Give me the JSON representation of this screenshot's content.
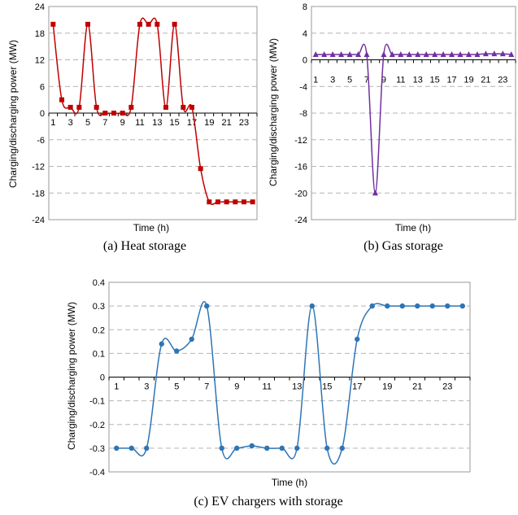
{
  "chart_data": [
    {
      "type": "line",
      "caption": "(a) Heat storage",
      "xlabel": "Time (h)",
      "ylabel": "Charging/discharging power (MW)",
      "ylim": [
        -24,
        24
      ],
      "yticks": [
        24,
        18,
        12,
        6,
        0,
        -6,
        -12,
        -18,
        -24
      ],
      "xtick_labels": [
        "1",
        "3",
        "5",
        "7",
        "9",
        "11",
        "13",
        "15",
        "17",
        "19",
        "21",
        "23"
      ],
      "x": [
        1,
        2,
        3,
        4,
        5,
        6,
        7,
        8,
        9,
        10,
        11,
        12,
        13,
        14,
        15,
        16,
        17,
        18,
        19,
        20,
        21,
        22,
        23,
        24
      ],
      "series": [
        {
          "color": "#c00000",
          "marker": "square",
          "values": [
            20,
            3,
            1.3,
            1.3,
            20,
            1.3,
            0,
            0,
            0,
            1.3,
            20,
            20,
            20,
            1.3,
            20,
            1.3,
            1.3,
            -12.5,
            -20,
            -20,
            -20,
            -20,
            -20,
            -20
          ]
        }
      ]
    },
    {
      "type": "line",
      "caption": "(b) Gas storage",
      "xlabel": "Time (h)",
      "ylabel": "Charging/discharging power (MW)",
      "ylim": [
        -24,
        8
      ],
      "yticks": [
        8,
        4,
        0,
        -4,
        -8,
        -12,
        -16,
        -20,
        -24
      ],
      "xtick_labels": [
        "1",
        "3",
        "5",
        "7",
        "9",
        "11",
        "13",
        "15",
        "17",
        "19",
        "21",
        "23"
      ],
      "x": [
        1,
        2,
        3,
        4,
        5,
        6,
        7,
        8,
        9,
        10,
        11,
        12,
        13,
        14,
        15,
        16,
        17,
        18,
        19,
        20,
        21,
        22,
        23,
        24
      ],
      "series": [
        {
          "color": "#7030a0",
          "marker": "triangle",
          "values": [
            0.8,
            0.8,
            0.8,
            0.8,
            0.8,
            0.8,
            0.8,
            -20,
            0.8,
            0.8,
            0.8,
            0.8,
            0.8,
            0.8,
            0.8,
            0.8,
            0.8,
            0.8,
            0.8,
            0.8,
            0.9,
            0.9,
            0.9,
            0.8
          ]
        }
      ]
    },
    {
      "type": "line",
      "caption": "(c) EV chargers with storage",
      "xlabel": "Time (h)",
      "ylabel": "Charging/discharging power (MW)",
      "ylim": [
        -0.4,
        0.4
      ],
      "yticks": [
        "0.4",
        "0.3",
        "0.2",
        "0.1",
        "0",
        "-0.1",
        "-0.2",
        "-0.3",
        "-0.4"
      ],
      "xtick_labels": [
        "1",
        "3",
        "5",
        "7",
        "9",
        "11",
        "13",
        "15",
        "17",
        "19",
        "21",
        "23"
      ],
      "x": [
        1,
        2,
        3,
        4,
        5,
        6,
        7,
        8,
        9,
        10,
        11,
        12,
        13,
        14,
        15,
        16,
        17,
        18,
        19,
        20,
        21,
        22,
        23,
        24
      ],
      "series": [
        {
          "color": "#2e75b6",
          "marker": "circle",
          "values": [
            -0.3,
            -0.3,
            -0.3,
            0.14,
            0.11,
            0.16,
            0.3,
            -0.3,
            -0.3,
            -0.29,
            -0.3,
            -0.3,
            -0.3,
            0.3,
            -0.3,
            -0.3,
            0.16,
            0.3,
            0.3,
            0.3,
            0.3,
            0.3,
            0.3,
            0.3
          ]
        }
      ]
    }
  ]
}
